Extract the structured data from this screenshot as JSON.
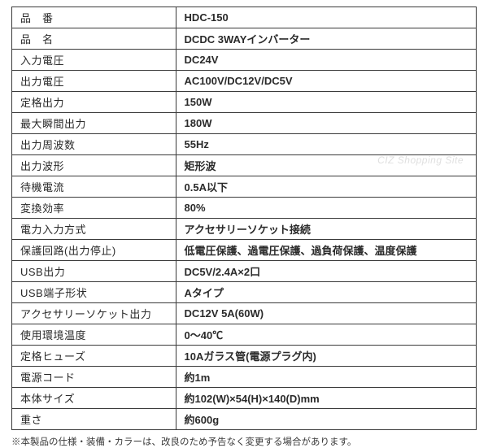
{
  "table": {
    "border_color": "#3a3a3a",
    "label_width": 202,
    "value_width": 370,
    "bg_color": "#ffffff",
    "text_color": "#2a2a2a",
    "label_fontsize": 13,
    "value_fontsize": 13,
    "row_height": 24.5,
    "rows": [
      {
        "label": "品　番",
        "value": "HDC-150"
      },
      {
        "label": "品　名",
        "value": "DCDC 3WAYインバーター"
      },
      {
        "label": "入力電圧",
        "value": "DC24V"
      },
      {
        "label": "出力電圧",
        "value": "AC100V/DC12V/DC5V"
      },
      {
        "label": "定格出力",
        "value": "150W"
      },
      {
        "label": "最大瞬間出力",
        "value": "180W"
      },
      {
        "label": "出力周波数",
        "value": "55Hz"
      },
      {
        "label": "出力波形",
        "value": "矩形波"
      },
      {
        "label": "待機電流",
        "value": "0.5A以下"
      },
      {
        "label": "変換効率",
        "value": "80%"
      },
      {
        "label": "電力入力方式",
        "value": "アクセサリーソケット接続"
      },
      {
        "label": "保護回路(出力停止)",
        "value": "低電圧保護、過電圧保護、過負荷保護、温度保護"
      },
      {
        "label": "USB出力",
        "value": "DC5V/2.4A×2口"
      },
      {
        "label": "USB端子形状",
        "value": "Aタイプ"
      },
      {
        "label": "アクセサリーソケット出力",
        "value": "DC12V  5A(60W)"
      },
      {
        "label": "使用環境温度",
        "value": "0～40℃"
      },
      {
        "label": "定格ヒューズ",
        "value": "10Aガラス管(電源プラグ内)"
      },
      {
        "label": "電源コード",
        "value": "約1m"
      },
      {
        "label": "本体サイズ",
        "value": "約102(W)×54(H)×140(D)mm"
      },
      {
        "label": "重さ",
        "value": "約600g"
      }
    ]
  },
  "footnote": "※本製品の仕様・装備・カラーは、改良のため予告なく変更する場合があります。",
  "watermark": "CIZ Shopping Site"
}
